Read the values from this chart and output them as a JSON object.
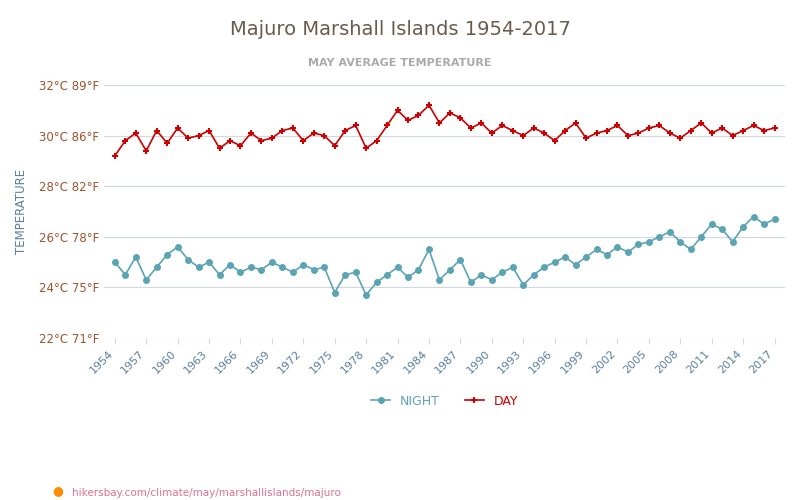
{
  "title": "Majuro Marshall Islands 1954-2017",
  "subtitle": "MAY AVERAGE TEMPERATURE",
  "ylabel": "TEMPERATURE",
  "url_text": "hikersbay.com/climate/may/marshallislands/majuro",
  "bg_color": "#ffffff",
  "title_color": "#6b5b4e",
  "subtitle_color": "#aaaaaa",
  "ylabel_color": "#5a7fa0",
  "ytick_color": "#a0522d",
  "xtick_color": "#5a7fa0",
  "grid_color": "#d0d8e0",
  "years": [
    1954,
    1955,
    1956,
    1957,
    1958,
    1959,
    1960,
    1961,
    1962,
    1963,
    1964,
    1965,
    1966,
    1967,
    1968,
    1969,
    1970,
    1971,
    1972,
    1973,
    1974,
    1975,
    1976,
    1977,
    1978,
    1979,
    1980,
    1981,
    1982,
    1983,
    1984,
    1985,
    1986,
    1987,
    1988,
    1989,
    1990,
    1991,
    1992,
    1993,
    1994,
    1995,
    1996,
    1997,
    1998,
    1999,
    2000,
    2001,
    2002,
    2003,
    2004,
    2005,
    2006,
    2007,
    2008,
    2009,
    2010,
    2011,
    2012,
    2013,
    2014,
    2015,
    2016,
    2017
  ],
  "day_temps": [
    29.2,
    29.8,
    30.1,
    29.4,
    30.2,
    29.7,
    30.3,
    29.9,
    30.0,
    30.2,
    29.5,
    29.8,
    29.6,
    30.1,
    29.8,
    29.9,
    30.2,
    30.3,
    29.8,
    30.1,
    30.0,
    29.6,
    30.2,
    30.4,
    29.5,
    29.8,
    30.4,
    31.0,
    30.6,
    30.8,
    31.2,
    30.5,
    30.9,
    30.7,
    30.3,
    30.5,
    30.1,
    30.4,
    30.2,
    30.0,
    30.3,
    30.1,
    29.8,
    30.2,
    30.5,
    29.9,
    30.1,
    30.2,
    30.4,
    30.0,
    30.1,
    30.3,
    30.4,
    30.1,
    29.9,
    30.2,
    30.5,
    30.1,
    30.3,
    30.0,
    30.2,
    30.4,
    30.2,
    30.3
  ],
  "night_temps": [
    25.0,
    24.5,
    25.2,
    24.3,
    24.8,
    25.3,
    25.6,
    25.1,
    24.8,
    25.0,
    24.5,
    24.9,
    24.6,
    24.8,
    24.7,
    25.0,
    24.8,
    24.6,
    24.9,
    24.7,
    24.8,
    23.8,
    24.5,
    24.6,
    23.7,
    24.2,
    24.5,
    24.8,
    24.4,
    24.7,
    25.5,
    24.3,
    24.7,
    25.1,
    24.2,
    24.5,
    24.3,
    24.6,
    24.8,
    24.1,
    24.5,
    24.8,
    25.0,
    25.2,
    24.9,
    25.2,
    25.5,
    25.3,
    25.6,
    25.4,
    25.7,
    25.8,
    26.0,
    26.2,
    25.8,
    25.5,
    26.0,
    26.5,
    26.3,
    25.8,
    26.4,
    26.8,
    26.5,
    26.7
  ],
  "day_color": "#cc0000",
  "night_color": "#5ba4b4",
  "ylim": [
    22,
    32
  ],
  "yticks_c": [
    22,
    24,
    26,
    28,
    30,
    32
  ],
  "ytick_labels": [
    "22°C 71°F",
    "24°C 75°F",
    "26°C 78°F",
    "28°C 82°F",
    "30°C 86°F",
    "32°C 89°F"
  ],
  "xtick_years": [
    1954,
    1957,
    1960,
    1963,
    1966,
    1969,
    1972,
    1975,
    1978,
    1981,
    1984,
    1987,
    1990,
    1993,
    1996,
    1999,
    2002,
    2005,
    2008,
    2011,
    2014,
    2017
  ]
}
